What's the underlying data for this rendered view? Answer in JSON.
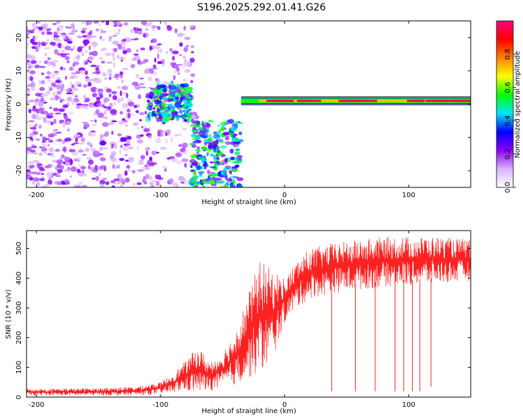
{
  "title": "S196.2025.292.01.41.G26",
  "chart_data": [
    {
      "type": "heatmap",
      "name": "spectrogram",
      "xlabel": "Height of straight line (km)",
      "ylabel": "Frequency (Hz)",
      "xlim": [
        -208,
        150
      ],
      "ylim": [
        -25,
        25
      ],
      "xticks": [
        -200,
        -100,
        0,
        100
      ],
      "yticks": [
        -20,
        -10,
        0,
        10,
        20
      ],
      "colorbar": {
        "label": "Normalized spectral amplitude",
        "range": [
          0,
          1
        ],
        "ticks": [
          0.0,
          0.2,
          0.4,
          0.6,
          0.8
        ],
        "tick_labels": [
          "0.0",
          "0.2",
          "0.4",
          "0.6",
          "0.8"
        ],
        "colors": [
          "#ffffff",
          "#d9b3ff",
          "#8a00ff",
          "#0000ff",
          "#00e5ff",
          "#00ff00",
          "#ffff00",
          "#ff8000",
          "#ff0000",
          "#ff0080"
        ]
      },
      "features": [
        {
          "segment": "noise",
          "x_range": [
            -208,
            -70
          ],
          "freq_range": [
            -25,
            25
          ],
          "amplitude": 0.12
        },
        {
          "segment": "descending track",
          "x_range": [
            -110,
            -75
          ],
          "freq_range": [
            -5,
            6
          ],
          "amplitude": 0.3
        },
        {
          "segment": "low-frequency cluster",
          "x_range": [
            -75,
            -35
          ],
          "freq_range": [
            -25,
            -5
          ],
          "amplitude": 0.3
        },
        {
          "segment": "carrier line",
          "x_range": [
            -35,
            150
          ],
          "freq": 1,
          "amplitude": 0.95
        }
      ]
    },
    {
      "type": "line",
      "name": "snr",
      "xlabel": "Height of straight line (km)",
      "ylabel": "SNR (10 * v/v)",
      "xlim": [
        -208,
        150
      ],
      "ylim": [
        0,
        560
      ],
      "xticks": [
        -200,
        -100,
        0,
        100
      ],
      "yticks": [
        0,
        100,
        200,
        300,
        400,
        500
      ],
      "color": "#ff2020",
      "envelope": [
        {
          "x": -208,
          "low": 5,
          "high": 28
        },
        {
          "x": -160,
          "low": 5,
          "high": 30
        },
        {
          "x": -120,
          "low": 5,
          "high": 35
        },
        {
          "x": -100,
          "low": 10,
          "high": 50
        },
        {
          "x": -90,
          "low": 15,
          "high": 80
        },
        {
          "x": -80,
          "low": 20,
          "high": 120
        },
        {
          "x": -70,
          "low": 15,
          "high": 170
        },
        {
          "x": -60,
          "low": 20,
          "high": 120
        },
        {
          "x": -50,
          "low": 30,
          "high": 150
        },
        {
          "x": -40,
          "low": 40,
          "high": 220
        },
        {
          "x": -30,
          "low": 60,
          "high": 340
        },
        {
          "x": -20,
          "low": 80,
          "high": 460
        },
        {
          "x": -10,
          "low": 120,
          "high": 430
        },
        {
          "x": 0,
          "low": 250,
          "high": 400
        },
        {
          "x": 10,
          "low": 300,
          "high": 460
        },
        {
          "x": 20,
          "low": 330,
          "high": 500
        },
        {
          "x": 40,
          "low": 350,
          "high": 520
        },
        {
          "x": 80,
          "low": 370,
          "high": 540
        },
        {
          "x": 120,
          "low": 380,
          "high": 540
        },
        {
          "x": 150,
          "low": 390,
          "high": 530
        }
      ],
      "dropouts": [
        {
          "x": 38,
          "y": 20
        },
        {
          "x": 57,
          "y": 20
        },
        {
          "x": 73,
          "y": 20
        },
        {
          "x": 89,
          "y": 20
        },
        {
          "x": 96,
          "y": 20
        },
        {
          "x": 103,
          "y": 20
        },
        {
          "x": 109,
          "y": 20
        },
        {
          "x": 118,
          "y": 35
        }
      ]
    }
  ]
}
